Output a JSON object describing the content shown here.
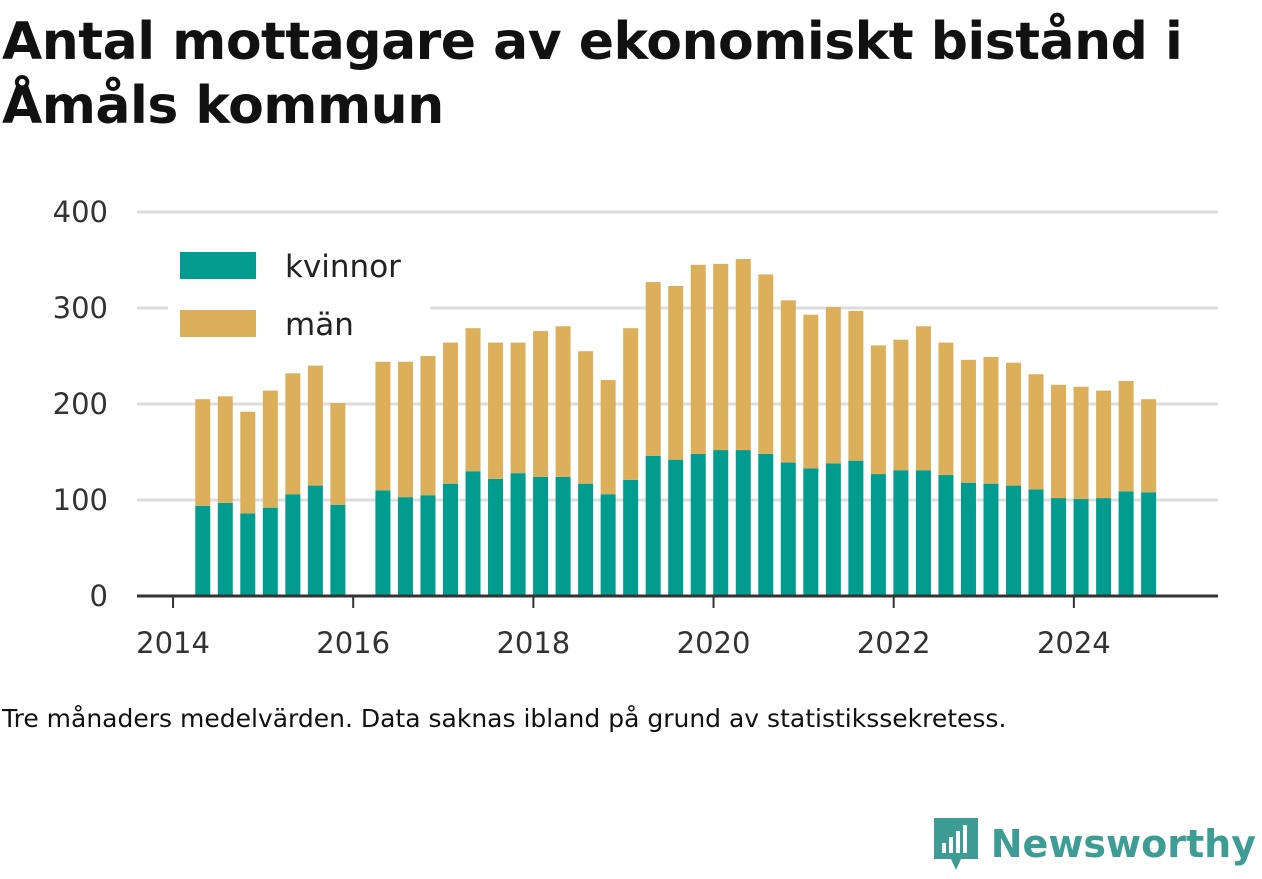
{
  "title": "Antal mottagare av ekonomiskt bistånd i Åmåls kommun",
  "caption": "Tre månaders medelvärden. Data saknas ibland på grund av statistikssekretess.",
  "brand": "Newsworthy",
  "colors": {
    "kvinnor": "#009c8f",
    "man": "#dcaf5b",
    "grid": "#dddddd",
    "axis": "#333333"
  },
  "chart_data": {
    "type": "bar",
    "stacked": true,
    "xlim": [
      2013.6,
      2025.6
    ],
    "ylim": [
      0,
      400
    ],
    "xticks": [
      2014,
      2016,
      2018,
      2020,
      2022,
      2024
    ],
    "yticks": [
      0,
      100,
      200,
      300,
      400
    ],
    "grid": true,
    "legend_position": "top-left",
    "x": [
      2014.33,
      2014.58,
      2014.83,
      2015.08,
      2015.33,
      2015.58,
      2015.83,
      2016.33,
      2016.58,
      2016.83,
      2017.08,
      2017.33,
      2017.58,
      2017.83,
      2018.08,
      2018.33,
      2018.58,
      2018.83,
      2019.08,
      2019.33,
      2019.58,
      2019.83,
      2020.08,
      2020.33,
      2020.58,
      2020.83,
      2021.08,
      2021.33,
      2021.58,
      2021.83,
      2022.08,
      2022.33,
      2022.58,
      2022.83,
      2023.08,
      2023.33,
      2023.58,
      2023.83,
      2024.08,
      2024.33,
      2024.58,
      2024.83
    ],
    "series": [
      {
        "name": "kvinnor",
        "values": [
          94,
          97,
          86,
          92,
          106,
          115,
          95,
          110,
          103,
          105,
          117,
          130,
          122,
          128,
          124,
          124,
          117,
          106,
          121,
          146,
          142,
          148,
          152,
          152,
          148,
          139,
          133,
          138,
          141,
          127,
          131,
          131,
          126,
          118,
          117,
          115,
          111,
          102,
          101,
          102,
          109,
          108
        ]
      },
      {
        "name": "män",
        "values": [
          111,
          111,
          106,
          122,
          126,
          125,
          106,
          134,
          141,
          145,
          147,
          149,
          142,
          136,
          152,
          157,
          138,
          119,
          158,
          181,
          181,
          197,
          194,
          199,
          187,
          169,
          160,
          163,
          156,
          134,
          136,
          150,
          138,
          128,
          132,
          128,
          120,
          118,
          117,
          112,
          115,
          97
        ]
      }
    ]
  }
}
